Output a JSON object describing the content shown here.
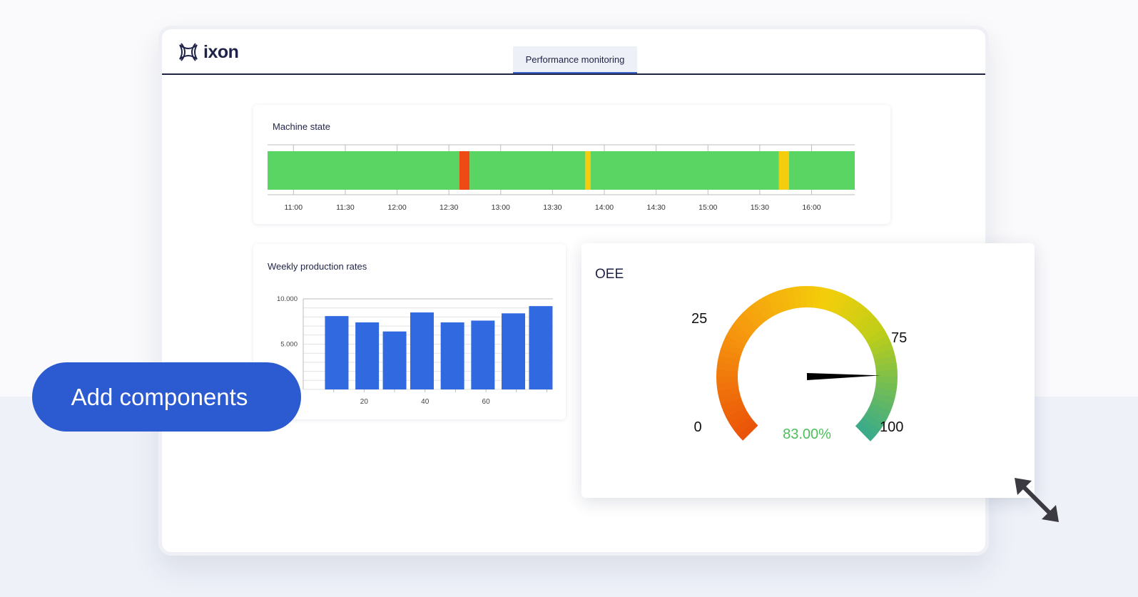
{
  "app": {
    "logo_text": "ixon",
    "tab_label": "Performance monitoring",
    "add_components_label": "Add components"
  },
  "colors": {
    "brand_navy": "#1f2347",
    "primary_blue": "#2b5ad1",
    "running": "#5ad462",
    "stopped": "#ee4a16",
    "idle": "#f5cd0f",
    "bar": "#3169e0",
    "gauge_value": "#4cbf5b"
  },
  "machine_state": {
    "title": "Machine state",
    "ticks": [
      "11:00",
      "11:30",
      "12:00",
      "12:30",
      "13:00",
      "13:30",
      "14:00",
      "14:30",
      "15:00",
      "15:30",
      "16:00"
    ],
    "segments": [
      {
        "state": "running",
        "start": "10:45",
        "end": "12:36"
      },
      {
        "state": "stopped",
        "start": "12:36",
        "end": "12:42"
      },
      {
        "state": "running",
        "start": "12:42",
        "end": "13:49"
      },
      {
        "state": "idle",
        "start": "13:49",
        "end": "13:52"
      },
      {
        "state": "running",
        "start": "13:52",
        "end": "15:41"
      },
      {
        "state": "idle",
        "start": "15:41",
        "end": "15:47"
      },
      {
        "state": "running",
        "start": "15:47",
        "end": "16:25"
      }
    ]
  },
  "weekly": {
    "title": "Weekly production rates",
    "y_tick_labels": [
      "10.000",
      "5.000"
    ],
    "x_tick_labels": [
      "20",
      "40",
      "60"
    ]
  },
  "oee": {
    "title": "OEE",
    "value_text": "83.00%",
    "value": 83,
    "labels": [
      "0",
      "25",
      "75",
      "100"
    ]
  },
  "chart_data": [
    {
      "type": "bar",
      "title": "Weekly production rates",
      "x": [
        11,
        21,
        30,
        39,
        49,
        59,
        69,
        78
      ],
      "values": [
        8100,
        7400,
        6400,
        8500,
        7400,
        7600,
        8400,
        9200
      ],
      "xlim": [
        0,
        82
      ],
      "ylim": [
        0,
        10000
      ],
      "yticks": [
        5000,
        10000
      ],
      "xticks": [
        20,
        40,
        60
      ],
      "grid": true
    },
    {
      "type": "gauge",
      "title": "OEE",
      "value": 83,
      "range": [
        0,
        100
      ]
    }
  ]
}
